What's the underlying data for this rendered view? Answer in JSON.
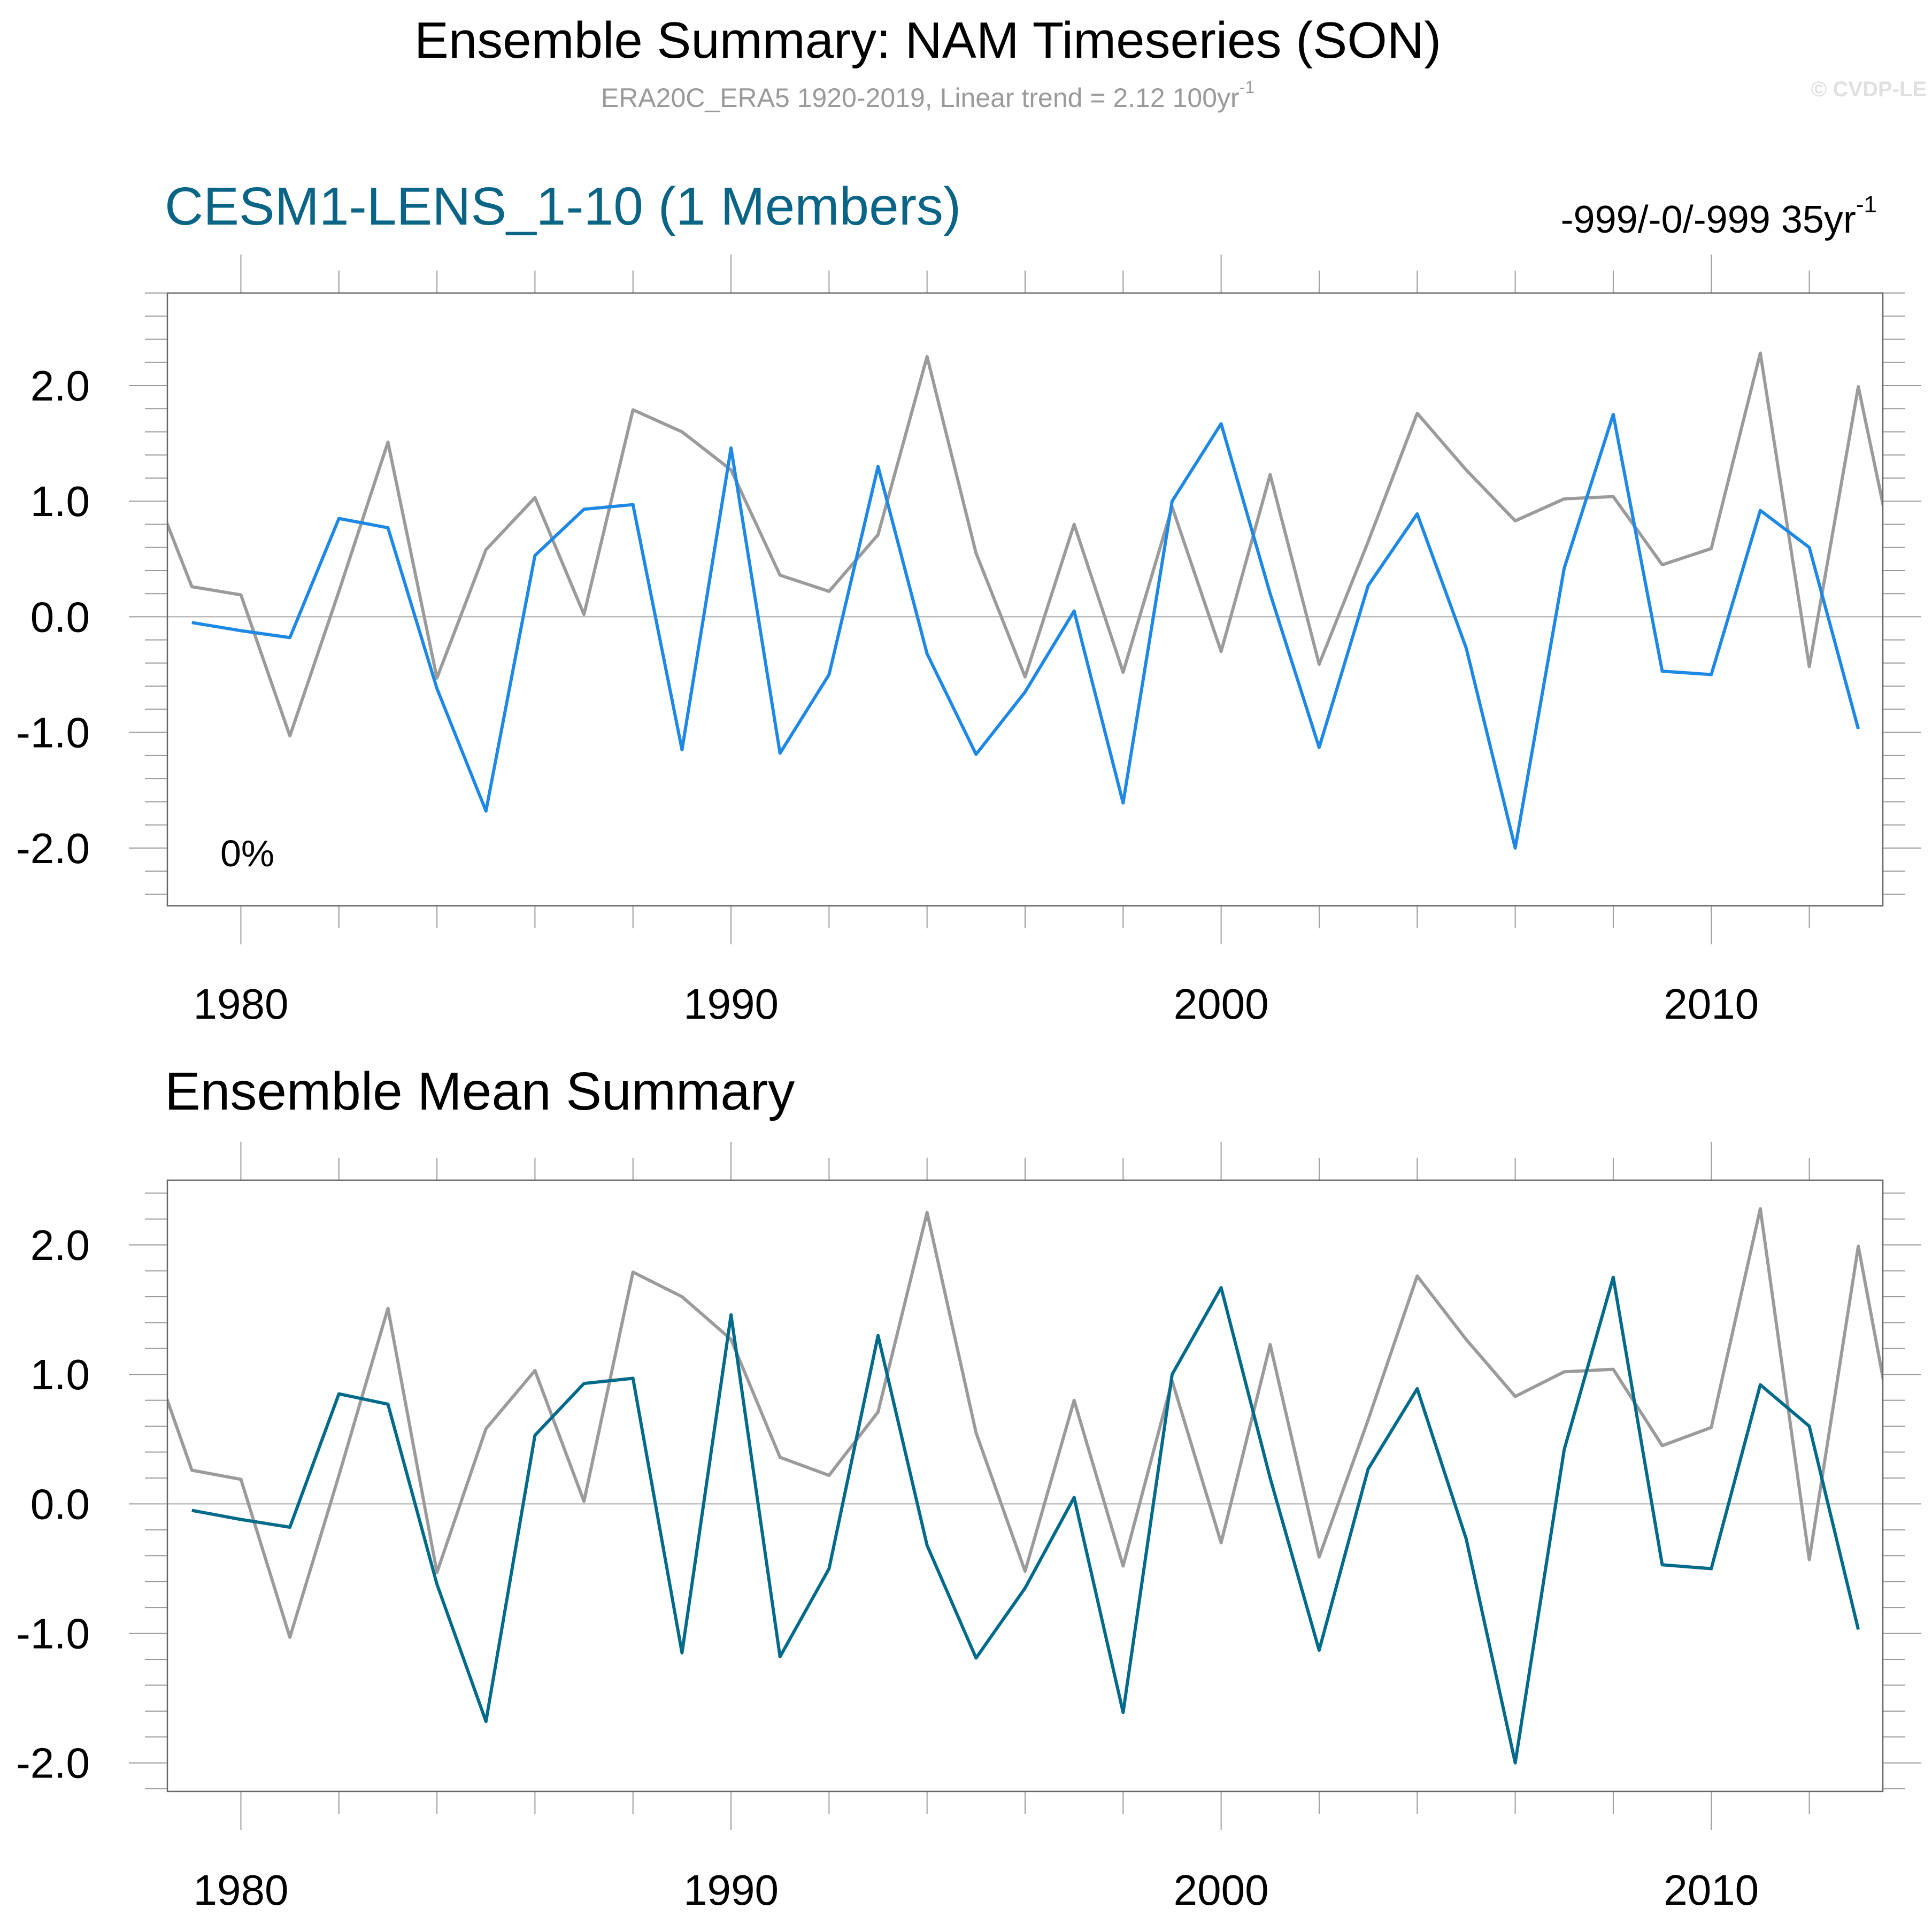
{
  "header": {
    "title": "Ensemble Summary: NAM Timeseries (SON)",
    "subtitle": "ERA20C_ERA5 1920-2019, Linear trend = 2.12 100yr",
    "subtitle_sup": "-1",
    "copyright": "© CVDP-LE"
  },
  "colors": {
    "observations": "#9b9b9b",
    "member": "#1e88e5",
    "ensemble_mean": "#006a8a",
    "panel_title": "#0a6485",
    "axis": "#666666",
    "zero_line": "#a8a8a8"
  },
  "chart_data": [
    {
      "type": "line",
      "title": "CESM1-LENS_1-10 (1 Members)",
      "annotation_right": "-999/-0/-999 35yr",
      "annotation_right_sup": "-1",
      "annotation_inside": "0%",
      "xlabel": "",
      "ylabel": "",
      "xlim": [
        1978.5,
        2013.5
      ],
      "ylim": [
        -2.5,
        2.8
      ],
      "xticks": [
        1980,
        1990,
        2000,
        2010
      ],
      "xtick_labels": [
        "1980",
        "1990",
        "2000",
        "2010"
      ],
      "yticks": [
        2.0,
        1.0,
        0.0,
        -1.0,
        -2.0
      ],
      "ytick_labels": [
        "2.0",
        "1.0",
        "0.0",
        "-1.0",
        "-2.0"
      ],
      "grid": false,
      "zero_line": true,
      "series": [
        {
          "name": "ERA20C_ERA5 (observations)",
          "color_key": "observations",
          "x": [
            1978,
            1979,
            1980,
            1981,
            1982,
            1983,
            1984,
            1985,
            1986,
            1987,
            1988,
            1989,
            1990,
            1991,
            1992,
            1993,
            1994,
            1995,
            1996,
            1997,
            1998,
            1999,
            2000,
            2001,
            2002,
            2003,
            2004,
            2005,
            2006,
            2007,
            2008,
            2009,
            2010,
            2011,
            2012,
            2013,
            2014
          ],
          "values": [
            1.34,
            0.26,
            0.19,
            -1.03,
            0.22,
            1.51,
            -0.53,
            0.58,
            1.03,
            0.02,
            1.79,
            1.6,
            1.27,
            0.36,
            0.22,
            0.71,
            2.25,
            0.55,
            -0.52,
            0.8,
            -0.48,
            0.95,
            -0.3,
            1.23,
            -0.41,
            0.65,
            1.76,
            1.27,
            0.83,
            1.02,
            1.04,
            0.45,
            0.59,
            2.28,
            -0.43,
            1.99,
            -0.03
          ]
        },
        {
          "name": "CESM1-LENS_1-10",
          "color_key": "member",
          "x": [
            1979,
            1980,
            1981,
            1982,
            1983,
            1984,
            1985,
            1986,
            1987,
            1988,
            1989,
            1990,
            1991,
            1992,
            1993,
            1994,
            1995,
            1996,
            1997,
            1998,
            1999,
            2000,
            2001,
            2002,
            2003,
            2004,
            2005,
            2006,
            2007,
            2008,
            2009,
            2010,
            2011,
            2012,
            2013
          ],
          "values": [
            -0.05,
            -0.12,
            -0.18,
            0.85,
            0.77,
            -0.62,
            -1.68,
            0.53,
            0.93,
            0.97,
            -1.15,
            1.46,
            -1.18,
            -0.5,
            1.3,
            -0.32,
            -1.19,
            -0.65,
            0.05,
            -1.61,
            1.0,
            1.67,
            0.2,
            -1.13,
            0.27,
            0.89,
            -0.27,
            -2.0,
            0.42,
            1.75,
            -0.47,
            -0.5,
            0.92,
            0.6,
            -0.97
          ]
        }
      ]
    },
    {
      "type": "line",
      "title": "Ensemble Mean Summary",
      "xlabel": "",
      "ylabel": "",
      "xlim": [
        1978.5,
        2013.5
      ],
      "ylim": [
        -2.22,
        2.5
      ],
      "xticks": [
        1980,
        1990,
        2000,
        2010
      ],
      "xtick_labels": [
        "1980",
        "1990",
        "2000",
        "2010"
      ],
      "yticks": [
        2.0,
        1.0,
        0.0,
        -1.0,
        -2.0
      ],
      "ytick_labels": [
        "2.0",
        "1.0",
        "0.0",
        "-1.0",
        "-2.0"
      ],
      "grid": false,
      "zero_line": true,
      "series": [
        {
          "name": "ERA20C_ERA5 (observations)",
          "color_key": "observations",
          "x": [
            1978,
            1979,
            1980,
            1981,
            1982,
            1983,
            1984,
            1985,
            1986,
            1987,
            1988,
            1989,
            1990,
            1991,
            1992,
            1993,
            1994,
            1995,
            1996,
            1997,
            1998,
            1999,
            2000,
            2001,
            2002,
            2003,
            2004,
            2005,
            2006,
            2007,
            2008,
            2009,
            2010,
            2011,
            2012,
            2013,
            2014
          ],
          "values": [
            1.34,
            0.26,
            0.19,
            -1.03,
            0.22,
            1.51,
            -0.53,
            0.58,
            1.03,
            0.02,
            1.79,
            1.6,
            1.27,
            0.36,
            0.22,
            0.71,
            2.25,
            0.55,
            -0.52,
            0.8,
            -0.48,
            0.95,
            -0.3,
            1.23,
            -0.41,
            0.65,
            1.76,
            1.27,
            0.83,
            1.02,
            1.04,
            0.45,
            0.59,
            2.28,
            -0.43,
            1.99,
            -0.03
          ]
        },
        {
          "name": "Ensemble mean",
          "color_key": "ensemble_mean",
          "x": [
            1979,
            1980,
            1981,
            1982,
            1983,
            1984,
            1985,
            1986,
            1987,
            1988,
            1989,
            1990,
            1991,
            1992,
            1993,
            1994,
            1995,
            1996,
            1997,
            1998,
            1999,
            2000,
            2001,
            2002,
            2003,
            2004,
            2005,
            2006,
            2007,
            2008,
            2009,
            2010,
            2011,
            2012,
            2013
          ],
          "values": [
            -0.05,
            -0.12,
            -0.18,
            0.85,
            0.77,
            -0.62,
            -1.68,
            0.53,
            0.93,
            0.97,
            -1.15,
            1.46,
            -1.18,
            -0.5,
            1.3,
            -0.32,
            -1.19,
            -0.65,
            0.05,
            -1.61,
            1.0,
            1.67,
            0.2,
            -1.13,
            0.27,
            0.89,
            -0.27,
            -2.0,
            0.42,
            1.75,
            -0.47,
            -0.5,
            0.92,
            0.6,
            -0.97
          ]
        }
      ]
    }
  ]
}
